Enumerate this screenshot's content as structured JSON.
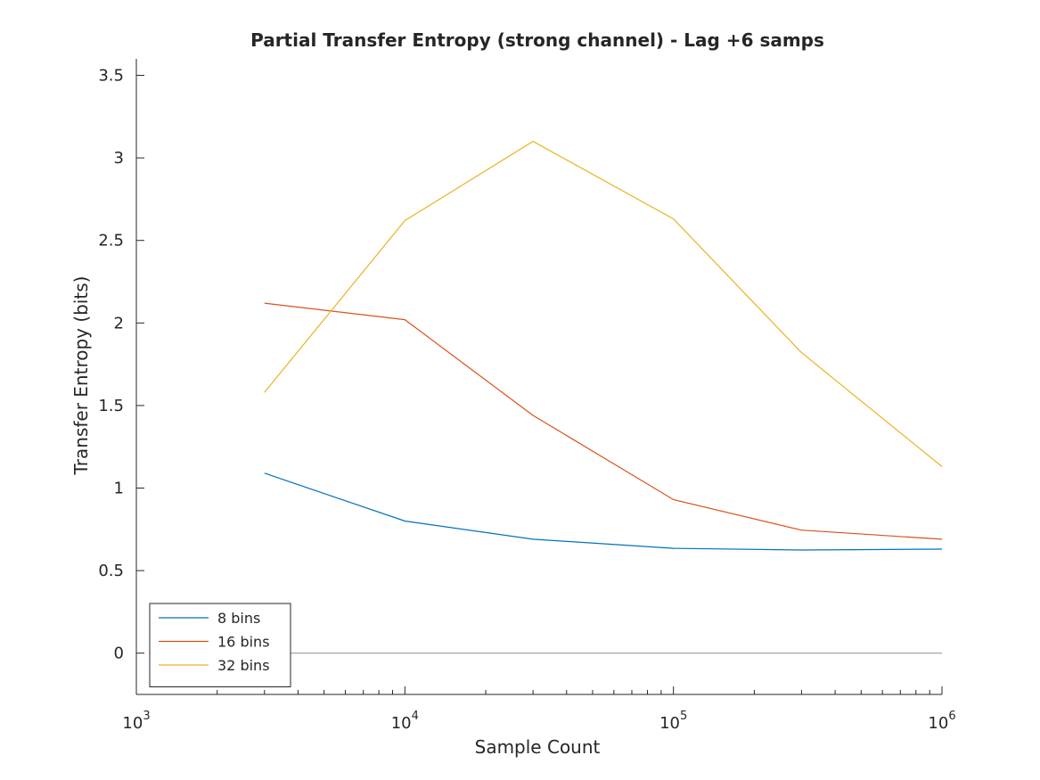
{
  "chart_data": {
    "type": "line",
    "title": "Partial Transfer Entropy (strong channel) - Lag +6 samps",
    "xlabel": "Sample Count",
    "ylabel": "Transfer Entropy (bits)",
    "xscale": "log",
    "xlim": [
      1000,
      1000000
    ],
    "ylim": [
      -0.25,
      3.6
    ],
    "x_ticks": [
      {
        "base": "10",
        "exp": "3"
      },
      {
        "base": "10",
        "exp": "4"
      },
      {
        "base": "10",
        "exp": "5"
      },
      {
        "base": "10",
        "exp": "6"
      }
    ],
    "y_ticks": [
      "0",
      "0.5",
      "1",
      "1.5",
      "2",
      "2.5",
      "3",
      "3.5"
    ],
    "x": [
      3000,
      10000,
      30000,
      100000,
      300000,
      1000000
    ],
    "series": [
      {
        "name": "8 bins",
        "color": "#0072BD",
        "values": [
          1.09,
          0.8,
          0.69,
          0.635,
          0.625,
          0.63
        ]
      },
      {
        "name": "16 bins",
        "color": "#D95319",
        "values": [
          2.12,
          2.02,
          1.44,
          0.93,
          0.745,
          0.69
        ]
      },
      {
        "name": "32 bins",
        "color": "#EDB120",
        "values": [
          1.58,
          2.62,
          3.1,
          2.63,
          1.82,
          1.13
        ]
      }
    ],
    "reference_line": {
      "y": 0,
      "color": "#999999"
    },
    "legend_position": "bottom-left",
    "grid": false
  }
}
